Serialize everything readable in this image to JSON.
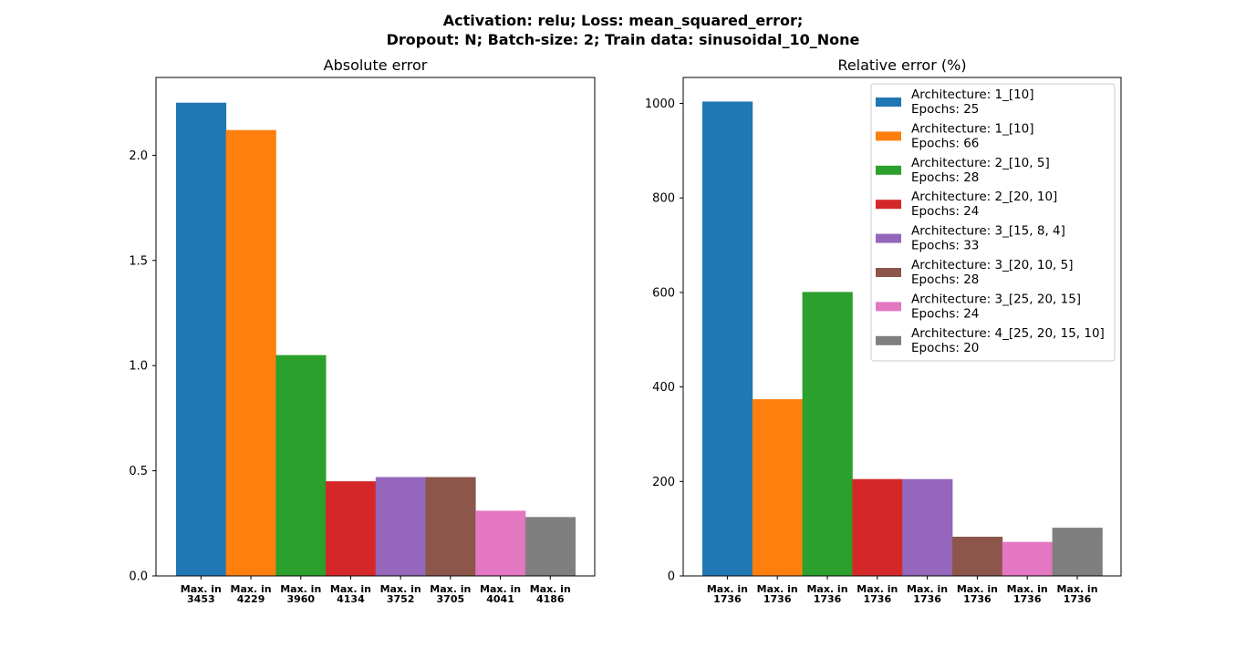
{
  "chart_data": {
    "suptitle": [
      "Activation: relu; Loss: mean_squared_error;",
      "Dropout: N; Batch-size: 2; Train data: sinusoidal_10_None"
    ],
    "colors": [
      "#1f77b4",
      "#ff7f0e",
      "#2ca02c",
      "#d62728",
      "#9467bd",
      "#8c564b",
      "#e377c2",
      "#7f7f7f"
    ],
    "legend": {
      "placement": "top-right",
      "entries": [
        [
          "Architecture: 1_[10]",
          "Epochs: 25"
        ],
        [
          "Architecture: 1_[10]",
          "Epochs: 66"
        ],
        [
          "Architecture: 2_[10, 5]",
          "Epochs: 28"
        ],
        [
          "Architecture: 2_[20, 10]",
          "Epochs: 24"
        ],
        [
          "Architecture: 3_[15, 8, 4]",
          "Epochs: 33"
        ],
        [
          "Architecture: 3_[20, 10, 5]",
          "Epochs: 28"
        ],
        [
          "Architecture: 3_[25, 20, 15]",
          "Epochs: 24"
        ],
        [
          "Architecture: 4_[25, 20, 15, 10]",
          "Epochs: 20"
        ]
      ]
    },
    "charts": [
      {
        "type": "bar",
        "title": "Absolute error",
        "categories": [
          [
            "Max. in",
            "3453"
          ],
          [
            "Max. in",
            "4229"
          ],
          [
            "Max. in",
            "3960"
          ],
          [
            "Max. in",
            "4134"
          ],
          [
            "Max. in",
            "3752"
          ],
          [
            "Max. in",
            "3705"
          ],
          [
            "Max. in",
            "4041"
          ],
          [
            "Max. in",
            "4186"
          ]
        ],
        "values": [
          2.25,
          2.12,
          1.05,
          0.45,
          0.47,
          0.47,
          0.31,
          0.28
        ],
        "ylim": [
          0,
          2.37
        ],
        "yticks": [
          0.0,
          0.5,
          1.0,
          1.5,
          2.0
        ],
        "ytick_labels": [
          "0.0",
          "0.5",
          "1.0",
          "1.5",
          "2.0"
        ]
      },
      {
        "type": "bar",
        "title": "Relative error (%)",
        "categories": [
          [
            "Max. in",
            "1736"
          ],
          [
            "Max. in",
            "1736"
          ],
          [
            "Max. in",
            "1736"
          ],
          [
            "Max. in",
            "1736"
          ],
          [
            "Max. in",
            "1736"
          ],
          [
            "Max. in",
            "1736"
          ],
          [
            "Max. in",
            "1736"
          ],
          [
            "Max. in",
            "1736"
          ]
        ],
        "values": [
          1004,
          374,
          601,
          205,
          205,
          83,
          72,
          102
        ],
        "ylim": [
          0,
          1055
        ],
        "yticks": [
          0,
          200,
          400,
          600,
          800,
          1000
        ],
        "ytick_labels": [
          "0",
          "200",
          "400",
          "600",
          "800",
          "1000"
        ]
      }
    ]
  }
}
